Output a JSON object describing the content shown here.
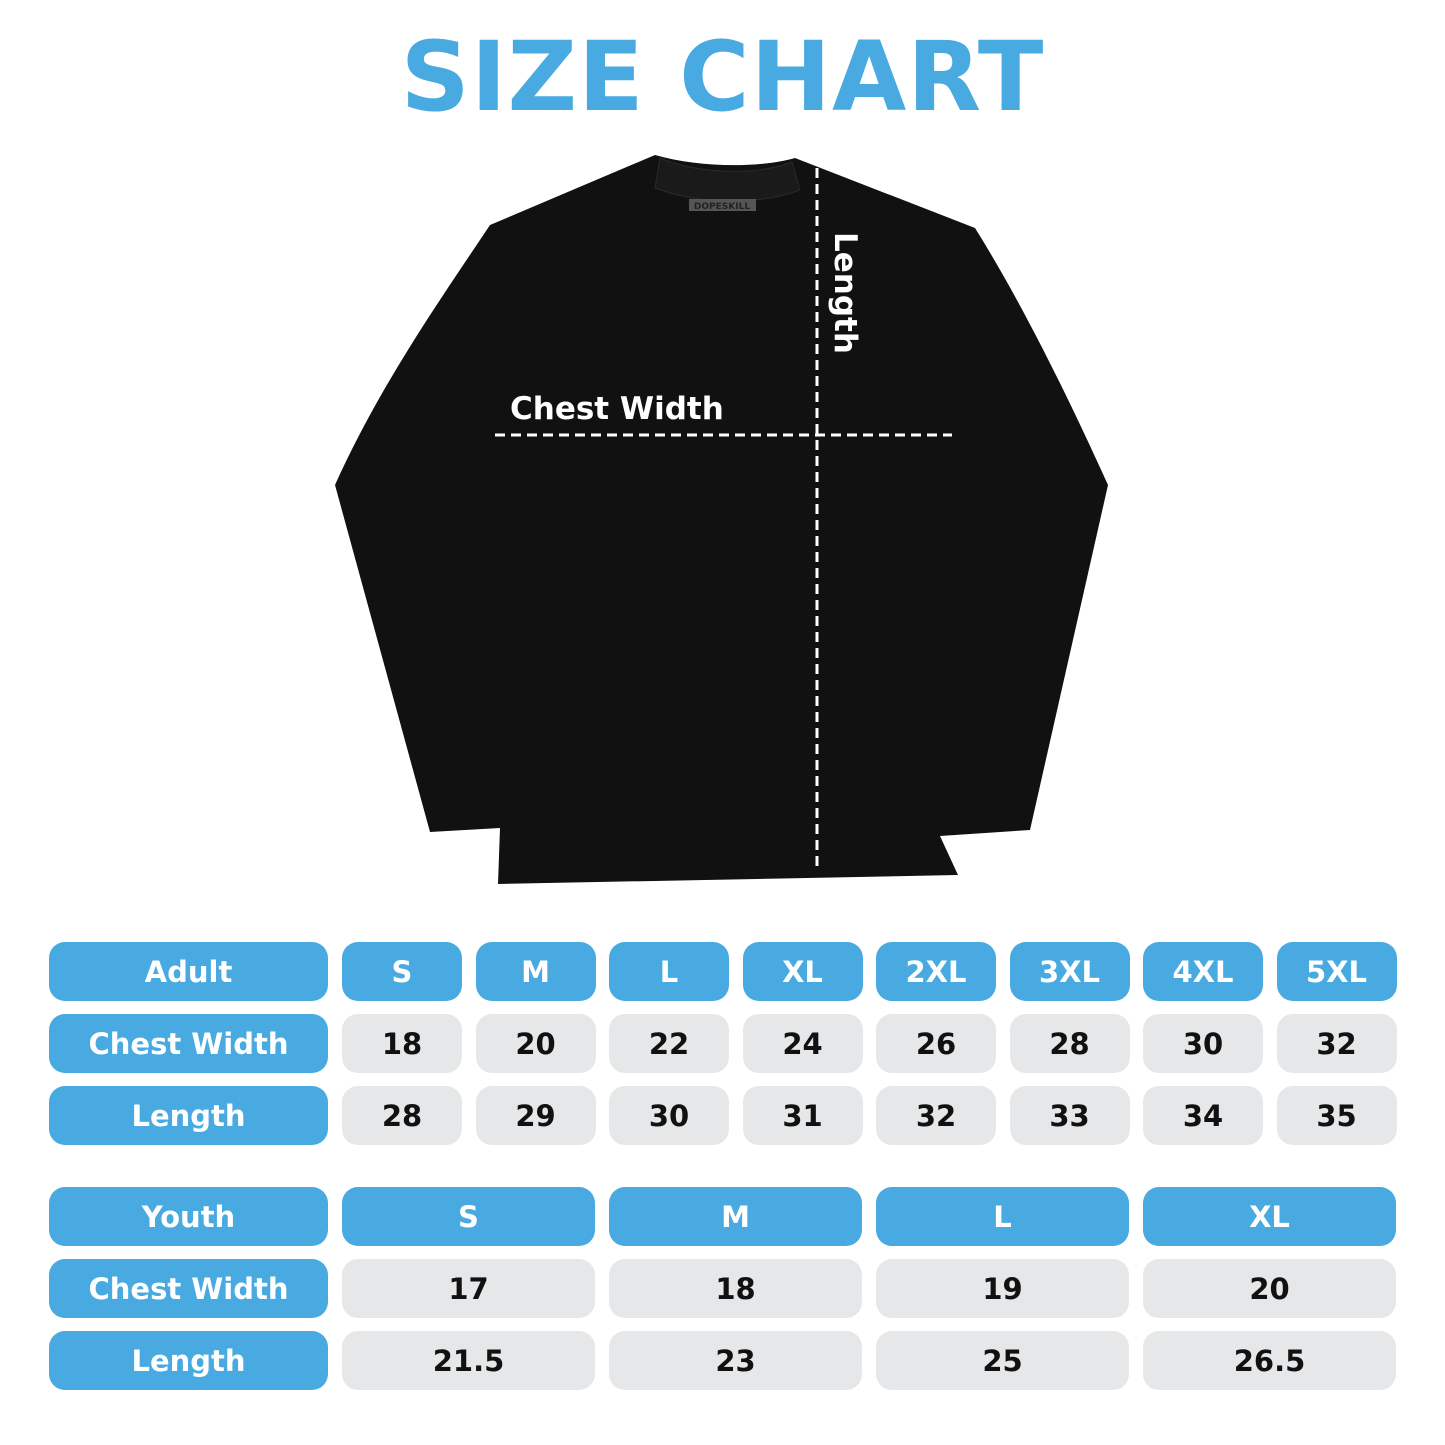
{
  "title": "SIZE CHART",
  "shirt": {
    "brand_tag": "DOPESKILL",
    "chest_label": "Chest Width",
    "length_label": "Length"
  },
  "colors": {
    "accent": "#48aae0",
    "cell_bg": "#e6e7e8",
    "shirt": "#111111"
  },
  "adult": {
    "header": "Adult",
    "sizes": [
      "S",
      "M",
      "L",
      "XL",
      "2XL",
      "3XL",
      "4XL",
      "5XL"
    ],
    "rows": [
      {
        "label": "Chest Width",
        "values": [
          "18",
          "20",
          "22",
          "24",
          "26",
          "28",
          "30",
          "32"
        ]
      },
      {
        "label": "Length",
        "values": [
          "28",
          "29",
          "30",
          "31",
          "32",
          "33",
          "34",
          "35"
        ]
      }
    ]
  },
  "youth": {
    "header": "Youth",
    "sizes": [
      "S",
      "M",
      "L",
      "XL"
    ],
    "rows": [
      {
        "label": "Chest Width",
        "values": [
          "17",
          "18",
          "19",
          "20"
        ]
      },
      {
        "label": "Length",
        "values": [
          "21.5",
          "23",
          "25",
          "26.5"
        ]
      }
    ]
  }
}
